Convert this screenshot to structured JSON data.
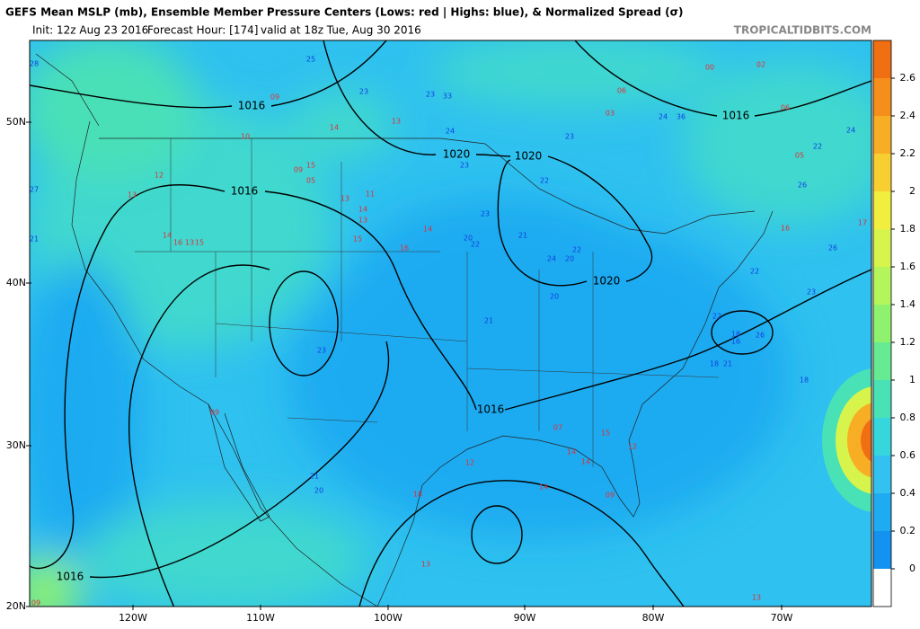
{
  "header": {
    "title": "GEFS Mean MSLP (mb), Ensemble Member Pressure Centers (Lows: red | Highs: blue), & Normalized Spread (σ)",
    "init": "Init: 12z Aug 23 2016",
    "forecast_hour": "Forecast Hour: [174]",
    "valid": "valid at 18z Tue, Aug 30 2016",
    "credit": "TROPICALTIDBITS.COM"
  },
  "map": {
    "lat_labels": [
      "50N",
      "40N",
      "30N",
      "20N"
    ],
    "lon_labels": [
      "120W",
      "110W",
      "100W",
      "90W",
      "80W",
      "70W"
    ],
    "isobar_labels": [
      "1016",
      "1016",
      "1020",
      "1020",
      "1016",
      "1020",
      "1016",
      "1016"
    ],
    "lows": [
      "09",
      "13",
      "14",
      "10",
      "12",
      "13",
      "09",
      "15",
      "05",
      "13",
      "11",
      "14",
      "13",
      "15",
      "16",
      "14",
      "14",
      "16",
      "15",
      "13",
      "09",
      "12",
      "14",
      "07",
      "14",
      "14",
      "15",
      "09",
      "12",
      "18",
      "13",
      "00",
      "06",
      "03",
      "06",
      "02",
      "05",
      "16",
      "17",
      "13",
      "09"
    ],
    "highs": [
      "28",
      "25",
      "23",
      "23",
      "33",
      "24",
      "23",
      "22",
      "23",
      "23",
      "22",
      "20",
      "21",
      "24",
      "20",
      "22",
      "20",
      "21",
      "23",
      "21",
      "20",
      "22",
      "23",
      "26",
      "22",
      "26",
      "24",
      "36",
      "18",
      "18",
      "21",
      "27",
      "16",
      "18",
      "26",
      "22",
      "24",
      "21"
    ]
  },
  "colorbar": {
    "range": [
      -0.2,
      2.8
    ],
    "ticks": [
      0,
      0.2,
      0.4,
      0.6,
      0.8,
      1,
      1.2,
      1.4,
      1.6,
      1.8,
      2,
      2.2,
      2.4,
      2.6
    ],
    "colors": [
      "#ffffff",
      "#1492ef",
      "#1fabf1",
      "#33c2f0",
      "#35d6dc",
      "#48e2b6",
      "#66ea92",
      "#8ff26e",
      "#b4f55c",
      "#d6f44c",
      "#f2ee3e",
      "#f8cf30",
      "#f8ae24",
      "#f68e1c",
      "#ef6f12"
    ]
  }
}
